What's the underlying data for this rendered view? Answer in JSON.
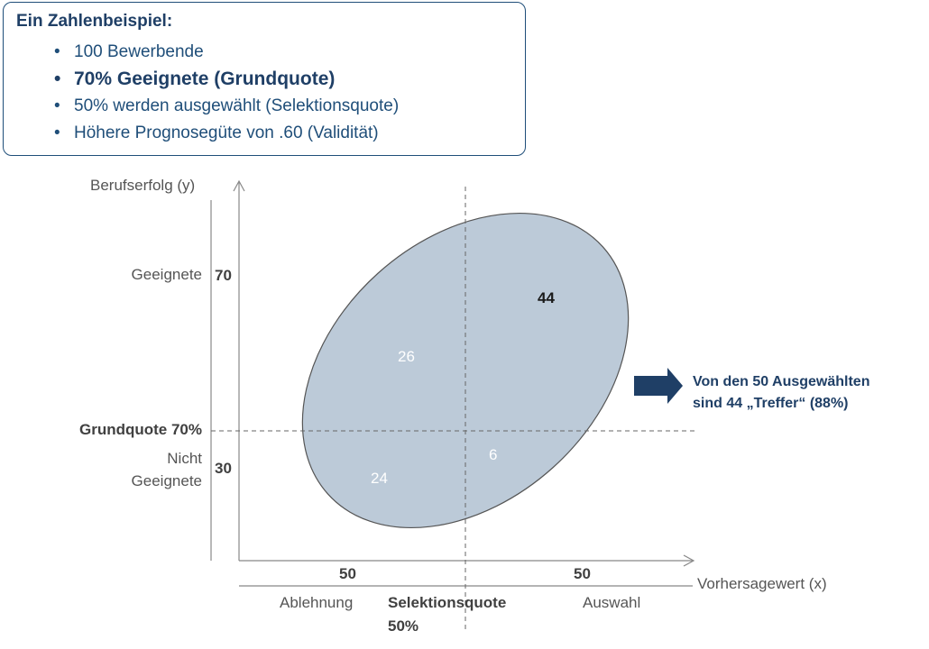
{
  "info": {
    "title": "Ein Zahlenbeispiel:",
    "items": [
      {
        "text": "100 Bewerbende",
        "bold": false
      },
      {
        "text": "70% Geeignete (Grundquote)",
        "bold": true
      },
      {
        "text": "50% werden ausgewählt (Selektionsquote)",
        "bold": false
      },
      {
        "text": "Höhere Prognosegüte von .60 (Validität)",
        "bold": false
      }
    ]
  },
  "axes": {
    "y_label": "Berufserfolg (y)",
    "x_label": "Vorhersagewert (x)"
  },
  "y_side": {
    "suitable_label": "Geeignete",
    "suitable_count": "70",
    "base_rate_label": "Grundquote 70%",
    "unsuitable_label_line1": "Nicht",
    "unsuitable_label_line2": "Geeignete",
    "unsuitable_count": "30"
  },
  "x_side": {
    "rejected_count": "50",
    "selected_count": "50",
    "rejected_label": "Ablehnung",
    "selection_rate_line1": "Selektionsquote",
    "selection_rate_line2": "50%",
    "selected_label": "Auswahl"
  },
  "cells": {
    "rejected_suitable": "26",
    "selected_suitable": "44",
    "rejected_unsuitable": "24",
    "selected_unsuitable": "6"
  },
  "callout": {
    "line1": "Von den 50 Ausgewählten",
    "line2": "sind 44 „Treffer“ (88%)"
  },
  "colors": {
    "ellipse_fill": "#bccad8",
    "ellipse_stroke": "#555555",
    "arrow": "#1f3f66",
    "box_border": "#1f4e79"
  }
}
